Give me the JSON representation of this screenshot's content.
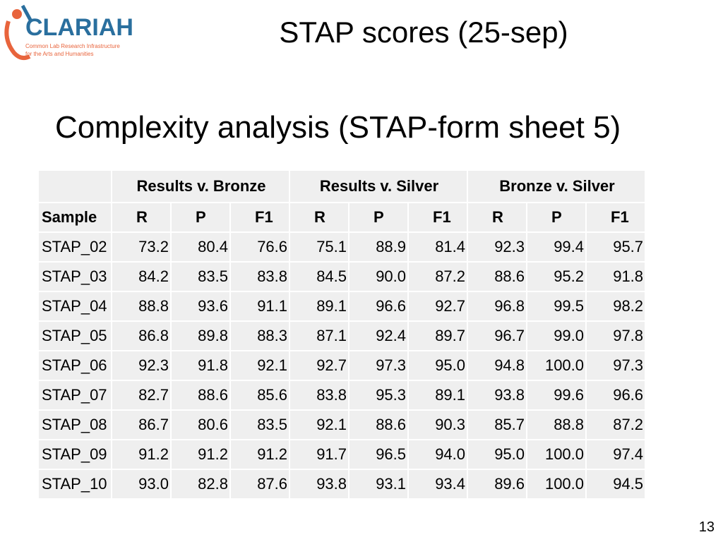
{
  "logo": {
    "name": "CLARIAH",
    "tagline": [
      "Common Lab Research Infrastructure",
      "for the Arts and Humanities"
    ]
  },
  "title": "STAP scores (25-sep)",
  "heading": "Complexity analysis (STAP-form sheet 5)",
  "table": {
    "groups": [
      "Results v. Bronze",
      "Results v. Silver",
      "Bronze v. Silver"
    ],
    "columns": [
      "Sample",
      "R",
      "P",
      "F1",
      "R",
      "P",
      "F1",
      "R",
      "P",
      "F1"
    ],
    "rows": [
      [
        "STAP_02",
        "73.2",
        "80.4",
        "76.6",
        "75.1",
        "88.9",
        "81.4",
        "92.3",
        "99.4",
        "95.7"
      ],
      [
        "STAP_03",
        "84.2",
        "83.5",
        "83.8",
        "84.5",
        "90.0",
        "87.2",
        "88.6",
        "95.2",
        "91.8"
      ],
      [
        "STAP_04",
        "88.8",
        "93.6",
        "91.1",
        "89.1",
        "96.6",
        "92.7",
        "96.8",
        "99.5",
        "98.2"
      ],
      [
        "STAP_05",
        "86.8",
        "89.8",
        "88.3",
        "87.1",
        "92.4",
        "89.7",
        "96.7",
        "99.0",
        "97.8"
      ],
      [
        "STAP_06",
        "92.3",
        "91.8",
        "92.1",
        "92.7",
        "97.3",
        "95.0",
        "94.8",
        "100.0",
        "97.3"
      ],
      [
        "STAP_07",
        "82.7",
        "88.6",
        "85.6",
        "83.8",
        "95.3",
        "89.1",
        "93.8",
        "99.6",
        "96.6"
      ],
      [
        "STAP_08",
        "86.7",
        "80.6",
        "83.5",
        "92.1",
        "88.6",
        "90.3",
        "85.7",
        "88.8",
        "87.2"
      ],
      [
        "STAP_09",
        "91.2",
        "91.2",
        "91.2",
        "91.7",
        "96.5",
        "94.0",
        "95.0",
        "100.0",
        "97.4"
      ],
      [
        "STAP_10",
        "93.0",
        "82.8",
        "87.6",
        "93.8",
        "93.1",
        "93.4",
        "89.6",
        "100.0",
        "94.5"
      ]
    ]
  },
  "page_number": "13"
}
